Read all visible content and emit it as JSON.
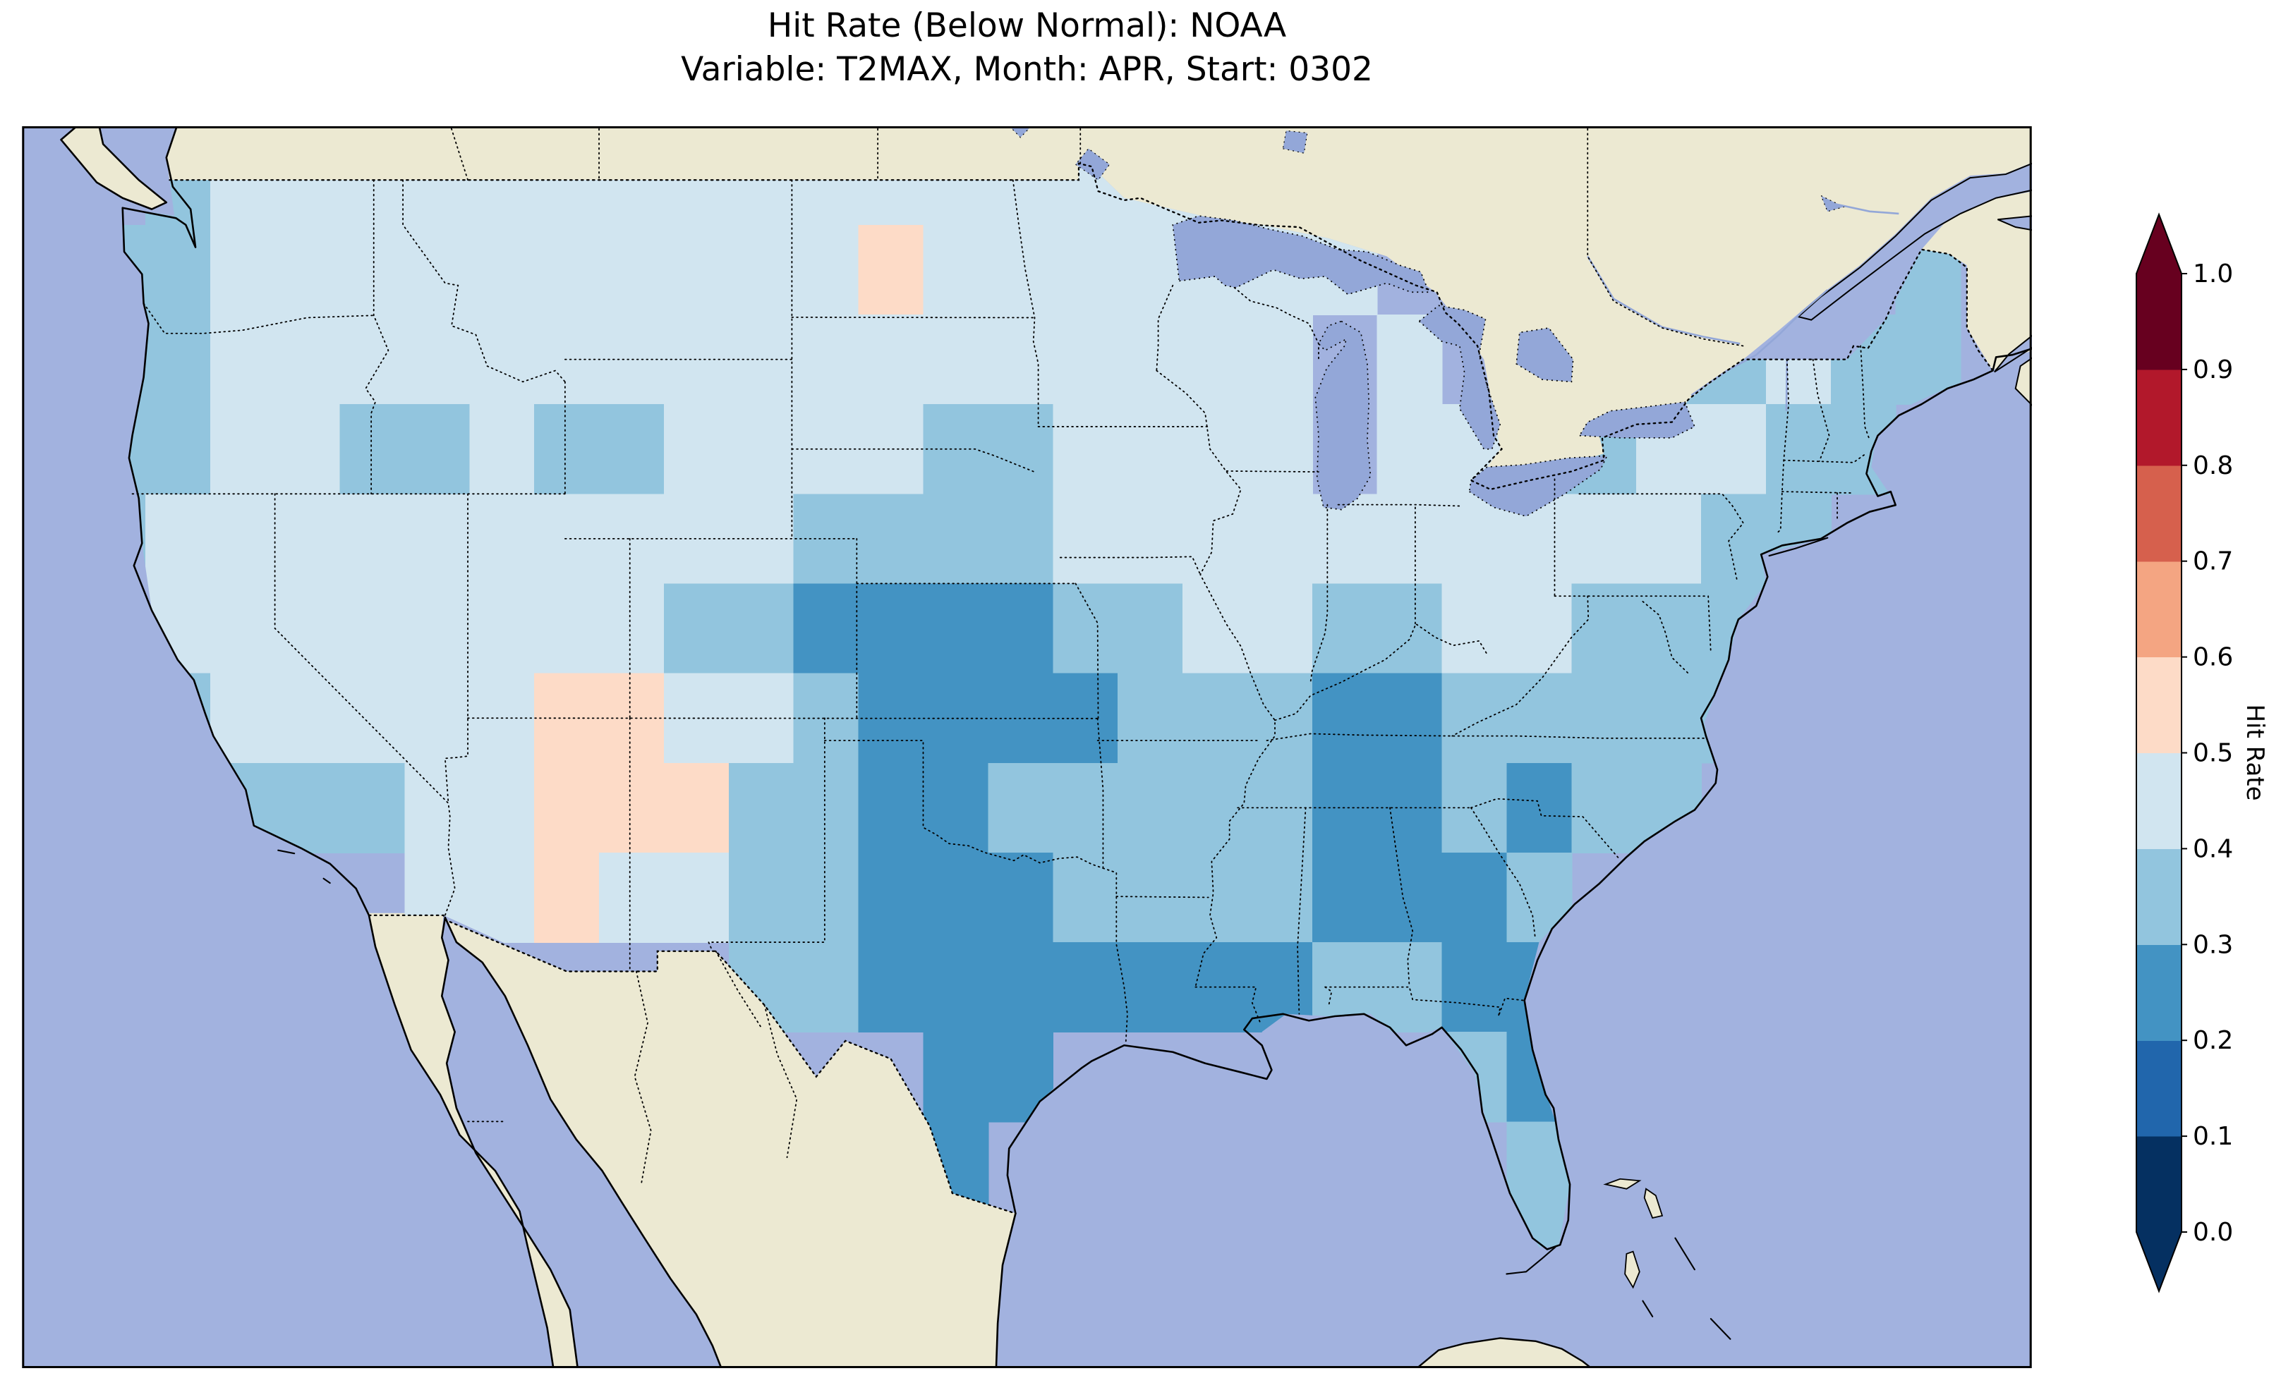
{
  "figure": {
    "background_color": "#ffffff",
    "text_color": "#000000"
  },
  "chart_data": {
    "type": "heatmap",
    "title": "Hit Rate (Below Normal): NOAA",
    "subtitle": "Variable: T2MAX, Month: APR, Start: 0302",
    "metric": "Hit Rate (Below Normal)",
    "dataset": "NOAA",
    "variable": "T2MAX",
    "month": "APR",
    "start": "0302",
    "colorbar": {
      "label": "Hit Rate",
      "tick_labels": [
        "0.0",
        "0.1",
        "0.2",
        "0.3",
        "0.4",
        "0.5",
        "0.6",
        "0.7",
        "0.8",
        "0.9",
        "1.0"
      ],
      "bin_edges": [
        0.0,
        0.1,
        0.2,
        0.3,
        0.4,
        0.5,
        0.6,
        0.7,
        0.8,
        0.9,
        1.0
      ],
      "bin_colors": [
        "#053061",
        "#2166ac",
        "#4393c3",
        "#92c5de",
        "#d1e5f0",
        "#fddbc7",
        "#f4a582",
        "#d6604d",
        "#b2182b",
        "#67001f"
      ],
      "under_arrow_color": "#053061",
      "over_arrow_color": "#67001f",
      "extend": "both",
      "colormap": "RdBu_r (discrete, 10 bins)",
      "orientation": "vertical",
      "position": "right"
    },
    "map": {
      "region": "Contiguous United States",
      "projection_note": "Approximate Plate Carree",
      "lon_extent": [
        -127.8,
        -65.8
      ],
      "lat_extent": [
        22.5,
        50.2
      ],
      "ocean_color": "#a2b2df",
      "land_color": "#ece9d2",
      "lake_color": "#93a7d8",
      "coastline_color": "#000000",
      "grid": {
        "cell_deg": 2,
        "lon_start": -126,
        "lat_top_start": 50,
        "ncols": 29,
        "nrows": 13,
        "encoding": "each char is a hit-rate bin index d meaning d/10 <= value < (d+1)/10; '.' = no data (outside US)",
        "rows": [
          ".34444444444444444...........",
          "33444444444454444444........3",
          "3344444444444444444.4...33433",
          "3344334334444334444.44334433.",
          "344444444443333444444444433..",
          "44444444433222233443344333...",
          "33444445544322223332233333...",
          "..33344555332233333223233....",
          ".....445443322233332223......",
          "..........3322222223322......",
          ".............22......32......",
          ".............2........3......",
          "......................3......"
        ]
      },
      "notable_regions": [
        {
          "region": "Most of the contiguous US",
          "hit_rate_range": [
            0.3,
            0.5
          ]
        },
        {
          "region": "SE Colorado / Kansas / Oklahoma / Texas Panhandle",
          "hit_rate_range": [
            0.2,
            0.3
          ]
        },
        {
          "region": "Central and South Texas, Texas Gulf Coast",
          "hit_rate_range": [
            0.2,
            0.3
          ]
        },
        {
          "region": "Southern Louisiana",
          "hit_rate_range": [
            0.2,
            0.3
          ]
        },
        {
          "region": "Tennessee / northern Alabama",
          "hit_rate_range": [
            0.2,
            0.3
          ]
        },
        {
          "region": "Southern Georgia / northern Florida peninsula",
          "hit_rate_range": [
            0.2,
            0.3
          ]
        },
        {
          "region": "Arizona / western New Mexico",
          "hit_rate_range": [
            0.5,
            0.6
          ]
        },
        {
          "region": "Small spot in central North Dakota",
          "hit_rate_range": [
            0.5,
            0.6
          ]
        }
      ]
    }
  }
}
